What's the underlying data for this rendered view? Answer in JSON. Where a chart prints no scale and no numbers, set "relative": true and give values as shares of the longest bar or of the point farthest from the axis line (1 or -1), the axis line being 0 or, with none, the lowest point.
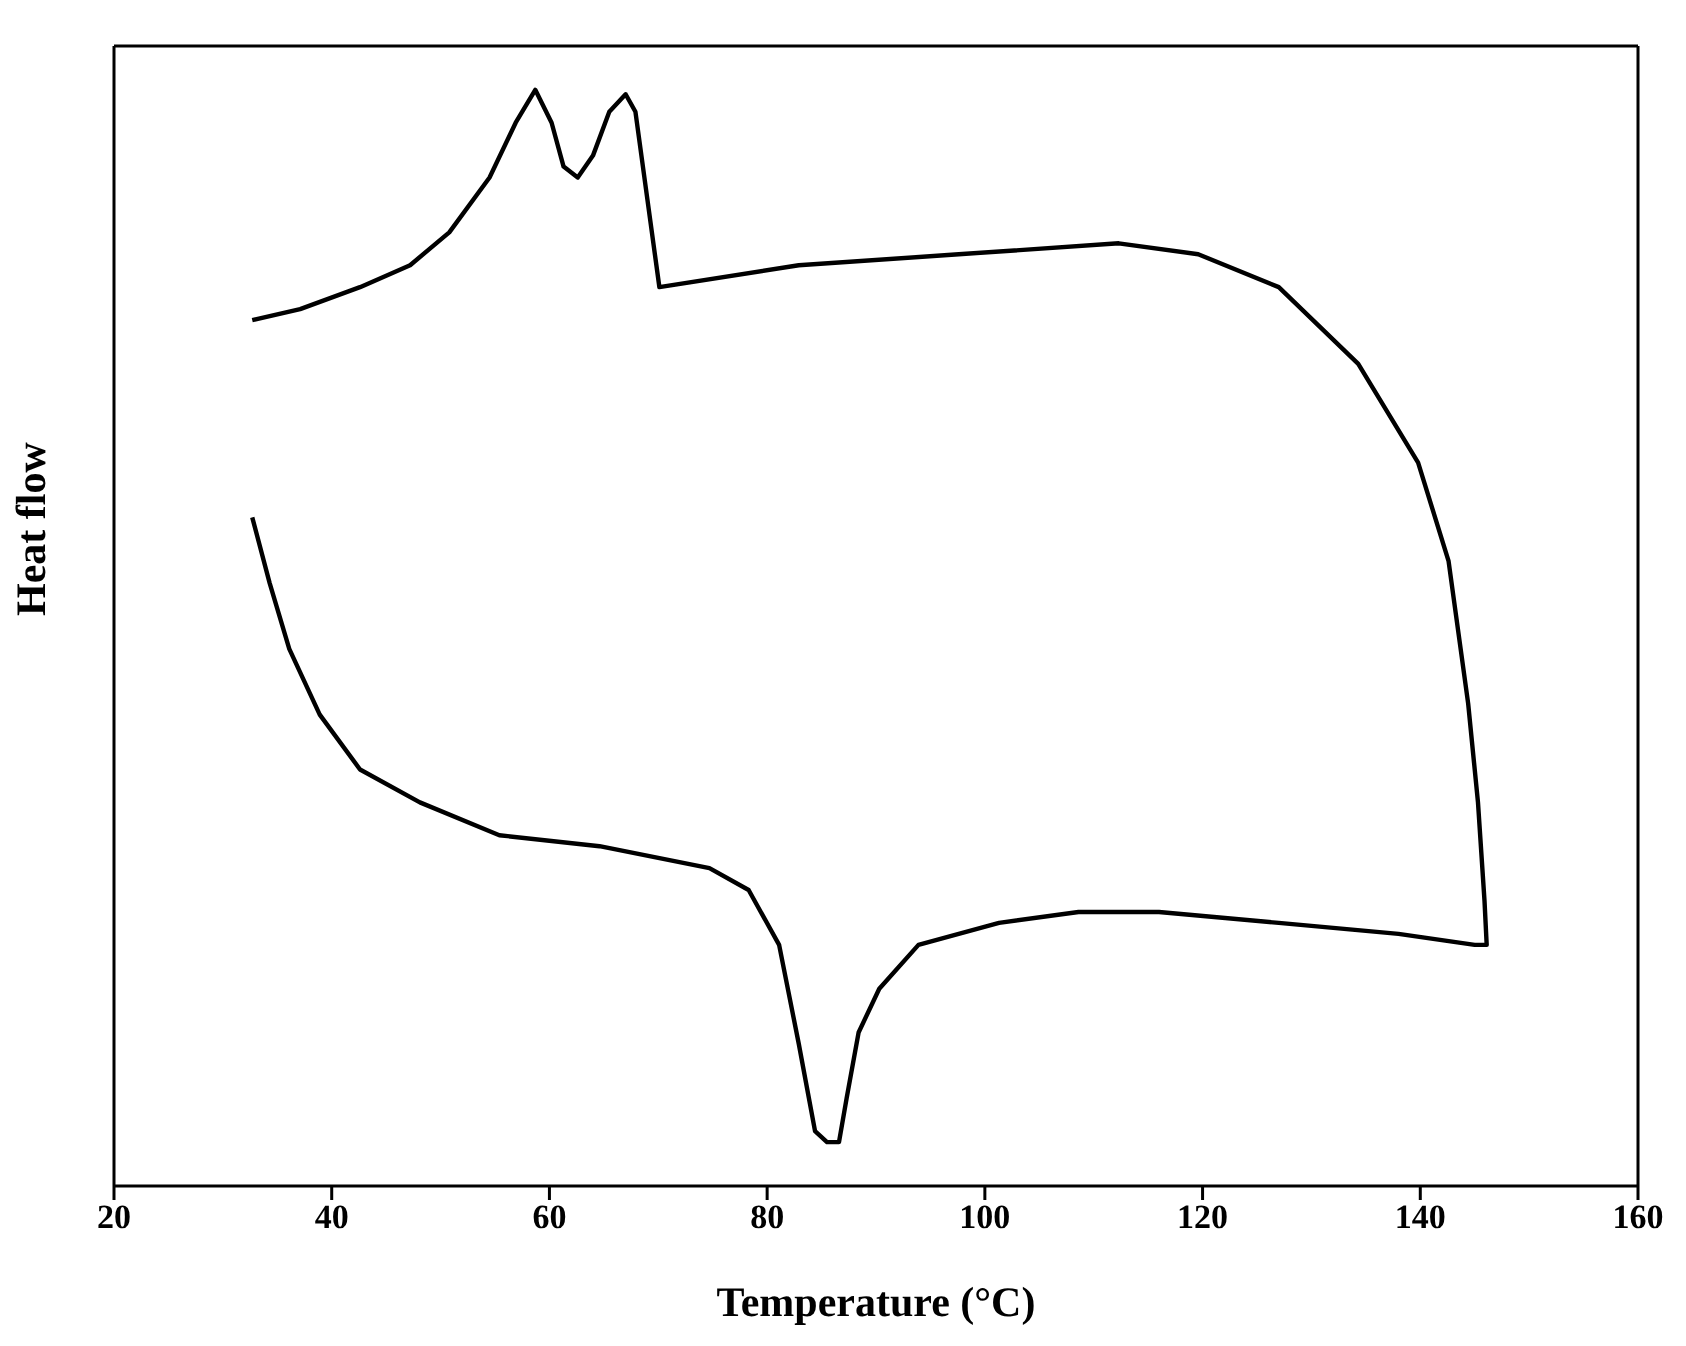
{
  "chart_data": {
    "type": "line",
    "relative": true,
    "xlabel": "Temperature (°C)",
    "ylabel": "Heat flow",
    "xlim": [
      20,
      160
    ],
    "xticks": [
      20,
      40,
      60,
      80,
      100,
      120,
      140,
      160
    ],
    "grid": false,
    "legend": false,
    "marker": "none",
    "line_style": "solid",
    "series": [
      {
        "color": "#000000",
        "x": [
          32.7,
          37.1,
          42.6,
          47.2,
          50.8,
          54.5,
          56.9,
          58.7,
          60.2,
          61.3,
          62.6,
          64.0,
          65.5,
          67.0,
          67.9,
          69.0,
          70.1,
          82.9,
          97.6,
          112.3,
          119.6,
          127.0,
          134.3,
          139.8,
          142.6,
          144.4,
          145.3,
          145.9,
          146.1,
          145.0,
          138.0,
          127.0,
          116.0,
          108.6,
          101.3,
          93.9,
          90.3,
          88.4,
          87.3,
          86.6,
          85.5,
          84.4,
          82.9,
          81.1,
          78.3,
          74.7,
          64.6,
          55.4,
          48.1,
          42.6,
          38.9,
          36.1,
          34.3,
          32.7
        ],
        "values": [
          0.79,
          0.8,
          0.82,
          0.84,
          0.87,
          0.92,
          0.97,
          1.0,
          0.97,
          0.93,
          0.92,
          0.94,
          0.98,
          0.996,
          0.98,
          0.9,
          0.82,
          0.84,
          0.85,
          0.86,
          0.85,
          0.82,
          0.75,
          0.66,
          0.57,
          0.44,
          0.35,
          0.26,
          0.22,
          0.22,
          0.23,
          0.24,
          0.25,
          0.25,
          0.24,
          0.22,
          0.18,
          0.14,
          0.08,
          0.04,
          0.04,
          0.05,
          0.13,
          0.22,
          0.27,
          0.29,
          0.31,
          0.32,
          0.35,
          0.38,
          0.43,
          0.49,
          0.55,
          0.61
        ]
      }
    ]
  }
}
